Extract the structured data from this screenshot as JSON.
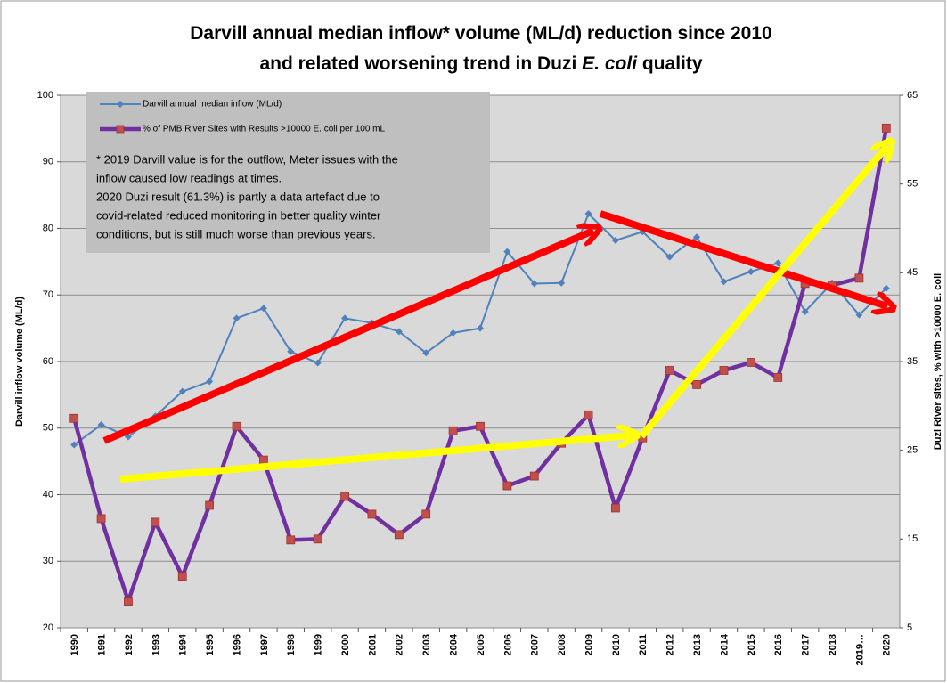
{
  "chart_data": {
    "type": "line",
    "title_lines": [
      [
        "Darvill annual median inflow* volume (ML/d) reduction since 2010"
      ],
      [
        "and related worsening trend in Duzi ",
        "E. coli",
        " quality"
      ]
    ],
    "y_label": "Darvill inflow volume (ML/d)",
    "y2_label": "Duzi River sites, % with >10000 E. coli",
    "categories": [
      "1990",
      "1991",
      "1992",
      "1993",
      "1994",
      "1995",
      "1996",
      "1997",
      "1998",
      "1999",
      "2000",
      "2001",
      "2002",
      "2003",
      "2004",
      "2005",
      "2006",
      "2007",
      "2008",
      "2009",
      "2010",
      "2011",
      "2012",
      "2013",
      "2014",
      "2015",
      "2016",
      "2017",
      "2018",
      "2019…",
      "2020"
    ],
    "series": [
      {
        "name": "Darvill annual median inflow (ML/d)",
        "color": "#4f81bd",
        "marker": "diamond",
        "values": [
          47.5,
          50.5,
          48.7,
          51.8,
          55.5,
          57,
          66.5,
          68,
          61.5,
          59.8,
          66.5,
          65.8,
          64.5,
          61.3,
          64.3,
          65,
          76.5,
          71.7,
          71.8,
          82.2,
          78.2,
          79.5,
          75.7,
          78.7,
          72,
          73.5,
          74.8,
          67.5,
          71.8,
          67,
          71
        ]
      },
      {
        "name": "% of PMB River Sites with Results >10000 E. coli per 100 mL",
        "color": "#7030a0",
        "marker": "square",
        "marker_color": "#c0504d",
        "axis": "y2",
        "values": [
          28.6,
          17.3,
          8.0,
          16.9,
          10.8,
          18.8,
          27.7,
          23.9,
          14.9,
          15.0,
          19.8,
          17.8,
          15.5,
          17.8,
          27.2,
          27.7,
          21.0,
          22.1,
          25.8,
          29.0,
          18.5,
          26.4,
          34.0,
          32.4,
          34.0,
          34.9,
          33.2,
          43.8,
          43.6,
          44.4,
          61.3
        ]
      }
    ],
    "ylim": [
      20,
      100
    ],
    "yticks": [
      20,
      30,
      40,
      50,
      60,
      70,
      80,
      90,
      100
    ],
    "y2lim": [
      5,
      65
    ],
    "y2ticks": [
      5,
      15,
      25,
      35,
      45,
      55,
      65
    ],
    "grid": true,
    "note_lines": [
      "* 2019 Darvill value is for the outflow, Meter issues with the",
      "inflow caused low readings at times.",
      "2020 Duzi result (61.3%) is partly a data artefact due to",
      "covid-related reduced monitoring in better quality winter",
      "conditions, but is still much worse than previous years."
    ]
  }
}
